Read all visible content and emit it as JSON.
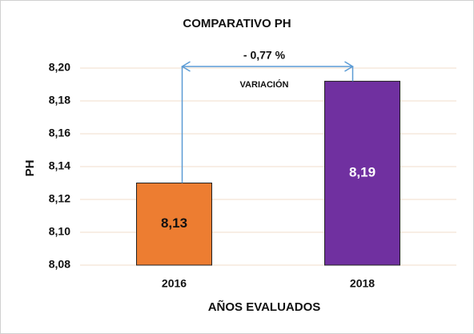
{
  "chart_data": {
    "type": "bar",
    "title": "COMPARATIVO PH",
    "categories": [
      "2016",
      "2018"
    ],
    "values": [
      8.13,
      8.192
    ],
    "value_labels": [
      "8,13",
      "8,19"
    ],
    "colors": [
      "#ED7D31",
      "#7030A0"
    ],
    "x_label": "AÑOS EVALUADOS",
    "y_label": "PH",
    "annotations": [
      "- 0,77 %",
      "VARIACIÓN"
    ],
    "ylim": [
      8.08,
      8.2
    ],
    "yticks": [
      {
        "value": 8.08,
        "label": "8,08"
      },
      {
        "value": 8.1,
        "label": "8,10"
      },
      {
        "value": 8.12,
        "label": "8,12"
      },
      {
        "value": 8.14,
        "label": "8,14"
      },
      {
        "value": 8.16,
        "label": "8,16"
      },
      {
        "value": 8.18,
        "label": "8,18"
      },
      {
        "value": 8.2,
        "label": "8,20"
      }
    ],
    "grid": true
  }
}
